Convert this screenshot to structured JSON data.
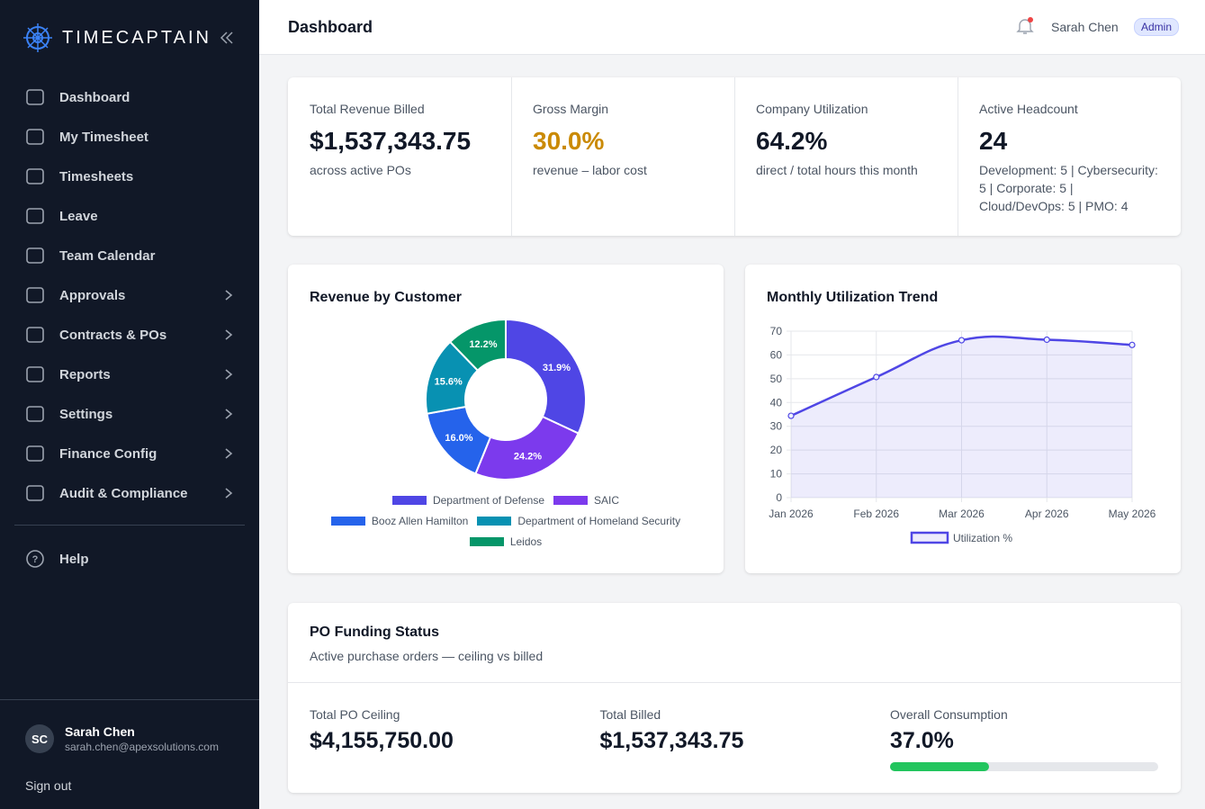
{
  "sidebar": {
    "brand": "TIMECAPTAIN",
    "nav": [
      {
        "label": "Dashboard"
      },
      {
        "label": "My Timesheet"
      },
      {
        "label": "Timesheets"
      },
      {
        "label": "Leave"
      },
      {
        "label": "Team Calendar"
      },
      {
        "label": "Approvals",
        "expandable": true
      },
      {
        "label": "Contracts & POs",
        "expandable": true
      },
      {
        "label": "Reports",
        "expandable": true
      },
      {
        "label": "Settings",
        "expandable": true
      },
      {
        "label": "Finance Config",
        "expandable": true
      },
      {
        "label": "Audit & Compliance",
        "expandable": true
      }
    ],
    "help": "Help",
    "user": {
      "initials": "SC",
      "name": "Sarah Chen",
      "email": "sarah.chen@apexsolutions.com"
    },
    "sign_out": "Sign out"
  },
  "header": {
    "title": "Dashboard",
    "user": "Sarah Chen",
    "role": "Admin"
  },
  "kpis": [
    {
      "label": "Total Revenue Billed",
      "value": "$1,537,343.75",
      "sub": "across active POs"
    },
    {
      "label": "Gross Margin",
      "value": "30.0%",
      "sub": "revenue – labor cost",
      "color": "#ca8a04"
    },
    {
      "label": "Company Utilization",
      "value": "64.2%",
      "sub": "direct / total hours this month"
    },
    {
      "label": "Active Headcount",
      "value": "24",
      "sub": "Development: 5 | Cybersecurity: 5 | Corporate: 5 | Cloud/DevOps: 5 | PMO: 4"
    }
  ],
  "chart_data": [
    {
      "type": "doughnut",
      "title": "Revenue by Customer",
      "categories": [
        "Department of Defense",
        "SAIC",
        "Booz Allen Hamilton",
        "Department of Homeland Security",
        "Leidos"
      ],
      "values": [
        31.9,
        24.2,
        16.0,
        15.6,
        12.2
      ],
      "value_labels": [
        "31.9%",
        "24.2%",
        "16.0%",
        "15.6%",
        "12.2%"
      ],
      "colors": [
        "#4f46e5",
        "#7c3aed",
        "#2563eb",
        "#0891b2",
        "#059669"
      ]
    },
    {
      "type": "line",
      "title": "Monthly Utilization Trend",
      "categories": [
        "Jan 2026",
        "Feb 2026",
        "Mar 2026",
        "Apr 2026",
        "May 2026"
      ],
      "series": [
        {
          "name": "Utilization %",
          "color": "#4f46e5",
          "values": [
            34.4,
            50.7,
            66.2,
            66.4,
            64.2
          ]
        }
      ],
      "ylim": [
        0,
        70
      ],
      "yticks": [
        0,
        10,
        20,
        30,
        40,
        50,
        60,
        70
      ],
      "grid": true,
      "fill": true
    }
  ],
  "po_funding": {
    "title": "PO Funding Status",
    "subtitle": "Active purchase orders — ceiling vs billed",
    "stats": [
      {
        "label": "Total PO Ceiling",
        "value": "$4,155,750.00"
      },
      {
        "label": "Total Billed",
        "value": "$1,537,343.75"
      },
      {
        "label": "Overall Consumption",
        "value": "37.0%"
      }
    ],
    "consumption": 37.0,
    "bar_color": "#22c55e"
  }
}
